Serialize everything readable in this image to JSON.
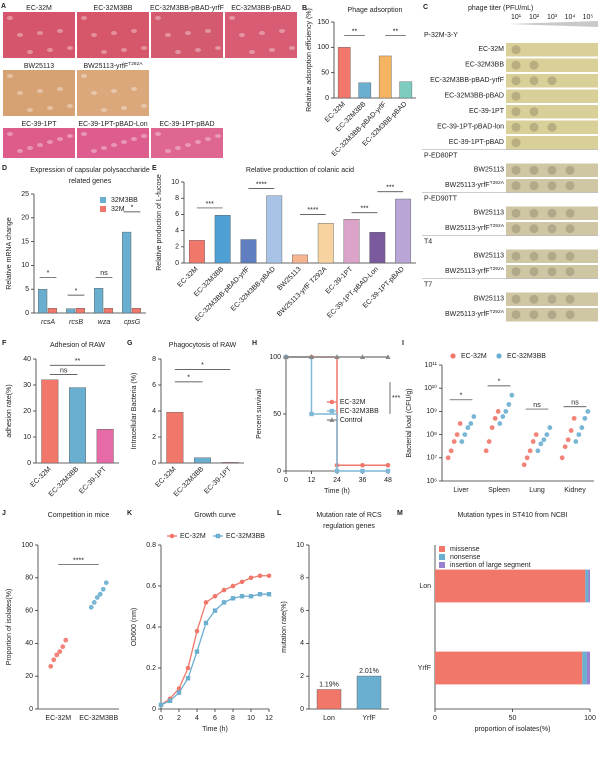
{
  "panel_a": {
    "panel": "A",
    "labels": [
      "EC-32M",
      "EC-32M3BB",
      "EC-32M3BB-pBAD-yrfF",
      "EC-32M3BB-pBAD",
      "BW25113",
      {
        "text": "BW25113-yrfF",
        "sup": "T292A"
      },
      "EC-39-1PT",
      "EC-39-1PT-pBAD-Lon",
      "EC-39-1PT-pBAD"
    ]
  },
  "panel_c": {
    "panel": "C",
    "header": "phage titer (PFU/mL)",
    "dilutions": [
      "10¹",
      "10²",
      "10³",
      "10⁴",
      "10⁵"
    ],
    "groups": [
      {
        "phage": "P-32M-3-Y",
        "strains": [
          "EC-32M",
          "EC-32M3BB",
          "EC-32M3BB-pBAD-yrfF",
          "EC-32M3BB-pBAD",
          "EC-39-1PT",
          "EC-39-1PT-pBAD-lon",
          "EC-39-1PT-pBAD"
        ]
      },
      {
        "phage": "P-ED80PT",
        "strains": [
          "BW25113",
          {
            "text": "BW25113-yrfF",
            "sup": "T292A"
          }
        ]
      },
      {
        "phage": "P-ED90TT",
        "strains": [
          "BW25113",
          {
            "text": "BW25113-yrfF",
            "sup": "T292A"
          }
        ]
      },
      {
        "phage": "T4",
        "strains": [
          "BW25113",
          {
            "text": "BW25113-yrfF",
            "sup": "T292A"
          }
        ]
      },
      {
        "phage": "T7",
        "strains": [
          "BW25113",
          {
            "text": "BW25113-yrfF",
            "sup": "T292A"
          }
        ]
      }
    ]
  },
  "chart_data": [
    {
      "panel": "B",
      "type": "bar",
      "title": "Phage adsorption",
      "ylabel": "Relative adsorption efficiency (%)",
      "categories": [
        "EC-32M",
        "EC-32M3BB",
        "EC-32M3BB-pBAD-yrfF",
        "EC-32M3BB-pBAD"
      ],
      "values": [
        100,
        30,
        83,
        32
      ],
      "colors": [
        "#f0776a",
        "#6aaed0",
        "#f5b462",
        "#7ccdbf"
      ],
      "ylim": [
        0,
        150
      ],
      "yticks": [
        0,
        50,
        100,
        150
      ],
      "annotations": [
        "**",
        "**"
      ]
    },
    {
      "panel": "D",
      "type": "bar",
      "title": [
        "Expression of capsular polysaccharide",
        "related genes"
      ],
      "ylabel": "Relative mRNA change",
      "categories": [
        "rcsA",
        "rcsB",
        "wza",
        "cpsG"
      ],
      "series": [
        {
          "name": "32M3BB",
          "color": "#6aaed0",
          "values": [
            5,
            0.9,
            5.2,
            17
          ]
        },
        {
          "name": "32M",
          "color": "#f0776a",
          "values": [
            1,
            1,
            1,
            1
          ]
        }
      ],
      "ylim": [
        0,
        25
      ],
      "yticks": [
        0,
        5,
        10,
        15,
        20,
        25
      ],
      "legend": "upper right",
      "annotations": [
        "*",
        "*",
        "ns",
        "*"
      ]
    },
    {
      "panel": "E",
      "type": "bar",
      "title": "Relative producttion of colanic acid",
      "ylabel": "Relative production of L-fucose",
      "categories": [
        "EC-32M",
        "EC-32M3BB",
        "EC-32M3BB-pBAD-yrfF",
        "EC-32M3BB-pBAD",
        "BW25113",
        "BW25113-yrfF T292A",
        "EC-39-1PT",
        "EC-39-1PT-pBAD-Lon",
        "EC-39-1PT-pBAD"
      ],
      "values": [
        2.8,
        5.9,
        2.9,
        8.3,
        1.0,
        4.9,
        5.4,
        3.8,
        7.9
      ],
      "colors": [
        "#f0776a",
        "#4e9fd3",
        "#5f7fc0",
        "#a9c3e6",
        "#f6b591",
        "#f7d3a2",
        "#dca3c8",
        "#7a5a9c",
        "#b9a6d6"
      ],
      "ylim": [
        0,
        10
      ],
      "yticks": [
        0,
        2,
        4,
        6,
        8,
        10
      ],
      "annotations": [
        "***",
        "****",
        "****",
        "***",
        "***"
      ]
    },
    {
      "panel": "F",
      "type": "bar",
      "title": "Adhesion of RAW",
      "ylabel": "adhesion rate(%)",
      "categories": [
        "EC-32M",
        "EC-32M3BB",
        "EC-39-1PT"
      ],
      "values": [
        32,
        29,
        13
      ],
      "colors": [
        "#f0776a",
        "#6aaed0",
        "#e56aa5"
      ],
      "ylim": [
        0,
        40
      ],
      "yticks": [
        0,
        10,
        20,
        30,
        40
      ],
      "annotations": [
        "ns",
        "**"
      ]
    },
    {
      "panel": "G",
      "type": "bar",
      "title": "Phagocytosis of RAW",
      "ylabel": "Intracellular Bacteria (%)",
      "categories": [
        "EC-32M",
        "EC-32M3BB",
        "EC-39-1PT"
      ],
      "values": [
        3.9,
        0.4,
        0.05
      ],
      "colors": [
        "#f0776a",
        "#6aaed0",
        "#e56aa5"
      ],
      "ylim": [
        0,
        8
      ],
      "yticks": [
        0,
        2,
        4,
        6,
        8
      ],
      "annotations": [
        "*",
        "*"
      ]
    },
    {
      "panel": "H",
      "type": "line",
      "step": true,
      "xlabel": "Time (h)",
      "ylabel": "Percent survival",
      "x": [
        0,
        12,
        24,
        36,
        48
      ],
      "xlim": [
        0,
        48
      ],
      "xticks": [
        0,
        12,
        24,
        36,
        48
      ],
      "ylim": [
        0,
        100
      ],
      "yticks": [
        0,
        50,
        100
      ],
      "series": [
        {
          "name": "EC-32M",
          "color": "#f0776a",
          "marker": "circle",
          "values": [
            100,
            100,
            5,
            5,
            5
          ]
        },
        {
          "name": "EC-32M3BB",
          "color": "#7fb8d6",
          "marker": "square",
          "values": [
            100,
            50,
            0,
            0,
            0
          ]
        },
        {
          "name": "Control",
          "color": "#888888",
          "marker": "triangle",
          "values": [
            100,
            100,
            100,
            100,
            100
          ]
        }
      ],
      "legend": "right",
      "annotations": [
        "***"
      ]
    },
    {
      "panel": "I",
      "type": "scatter",
      "ylabel": "Bacterial load (CFU/g)",
      "log": true,
      "ylim": [
        1000000,
        100000000000
      ],
      "yticks": [
        {
          "value": 1000000,
          "label": "10⁶"
        },
        {
          "value": 10000000,
          "label": "10⁷"
        },
        {
          "value": 100000000,
          "label": "10⁸"
        },
        {
          "value": 1000000000,
          "label": "10⁹"
        },
        {
          "value": 10000000000,
          "label": "10¹⁰"
        },
        {
          "value": 100000000000,
          "label": "10¹¹"
        }
      ],
      "categories": [
        "Liver",
        "Spleen",
        "Lung",
        "Kidney"
      ],
      "series": [
        {
          "name": "EC-32M",
          "color": "#f0776a",
          "values": [
            [
              10000000,
              20000000,
              50000000,
              100000000,
              300000000
            ],
            [
              20000000,
              50000000,
              200000000,
              500000000,
              1000000000
            ],
            [
              5000000,
              10000000,
              20000000,
              50000000,
              100000000
            ],
            [
              10000000,
              30000000,
              60000000,
              150000000,
              500000000
            ]
          ]
        },
        {
          "name": "EC-32M3BB",
          "color": "#6aaed0",
          "values": [
            [
              50000000,
              100000000,
              200000000,
              300000000,
              600000000
            ],
            [
              300000000,
              600000000,
              1000000000,
              2000000000,
              5000000000
            ],
            [
              20000000,
              40000000,
              60000000,
              100000000,
              200000000
            ],
            [
              50000000,
              100000000,
              200000000,
              500000000,
              1000000000
            ]
          ]
        }
      ],
      "legend": "top",
      "annotations": [
        "*",
        "*",
        "ns",
        "ns"
      ]
    },
    {
      "panel": "J",
      "type": "scatter",
      "title": "Competition in mice",
      "ylabel": "Proportion of isolates(%)",
      "categories": [
        "EC-32M",
        "EC-32M3BB"
      ],
      "values": [
        [
          26,
          30,
          33,
          35,
          38,
          42
        ],
        [
          62,
          65,
          68,
          70,
          73,
          77
        ]
      ],
      "colors": [
        "#f0776a",
        "#6aaed0"
      ],
      "ylim": [
        0,
        100
      ],
      "yticks": [
        0,
        20,
        40,
        60,
        80,
        100
      ],
      "annotations": [
        "****"
      ]
    },
    {
      "panel": "K",
      "type": "line",
      "title": "Growth curve",
      "xlabel": "Time (h)",
      "ylabel": "OD600 (nm)",
      "x": [
        0,
        1,
        2,
        3,
        4,
        5,
        6,
        7,
        8,
        9,
        10,
        11,
        12
      ],
      "xlim": [
        0,
        12
      ],
      "xticks": [
        0,
        2,
        4,
        6,
        8,
        10,
        12
      ],
      "ylim": [
        0,
        0.8
      ],
      "yticks": [
        0,
        0.2,
        0.4,
        0.6,
        0.8
      ],
      "series": [
        {
          "name": "EC-32M",
          "color": "#f0776a",
          "marker": "circle",
          "values": [
            0.02,
            0.05,
            0.1,
            0.2,
            0.38,
            0.52,
            0.55,
            0.58,
            0.6,
            0.62,
            0.64,
            0.65,
            0.65
          ]
        },
        {
          "name": "EC-32M3BB",
          "color": "#6aaed0",
          "marker": "square",
          "values": [
            0.02,
            0.04,
            0.08,
            0.15,
            0.28,
            0.42,
            0.48,
            0.52,
            0.54,
            0.55,
            0.55,
            0.56,
            0.56
          ]
        }
      ],
      "legend": "top"
    },
    {
      "panel": "L",
      "type": "bar",
      "title": [
        "Mutation rate of RCS",
        "regulation genes"
      ],
      "ylabel": "mutation rate(%)",
      "categories": [
        "Lon",
        "YrfF"
      ],
      "values": [
        1.19,
        2.01
      ],
      "value_labels": [
        "1.19%",
        "2.01%"
      ],
      "colors": [
        "#f0776a",
        "#6aaed0"
      ],
      "ylim": [
        0,
        10
      ],
      "yticks": [
        0,
        2,
        4,
        6,
        8,
        10
      ]
    },
    {
      "panel": "M",
      "type": "bar",
      "orientation": "horizontal",
      "stacked": true,
      "title": "Mutation types in ST410  from NCBI",
      "xlabel": "proportion of isolates(%)",
      "categories": [
        "Lon",
        "YrfF"
      ],
      "series": [
        {
          "name": "missense",
          "color": "#f0776a",
          "values": [
            97,
            95
          ]
        },
        {
          "name": "nonsense",
          "color": "#6aaed0",
          "values": [
            2,
            3
          ]
        },
        {
          "name": "insertion of large segment",
          "color": "#9b7fd0",
          "values": [
            1,
            2
          ]
        }
      ],
      "xlim": [
        0,
        100
      ],
      "xticks": [
        0,
        50,
        100
      ],
      "legend": "upper left"
    }
  ]
}
